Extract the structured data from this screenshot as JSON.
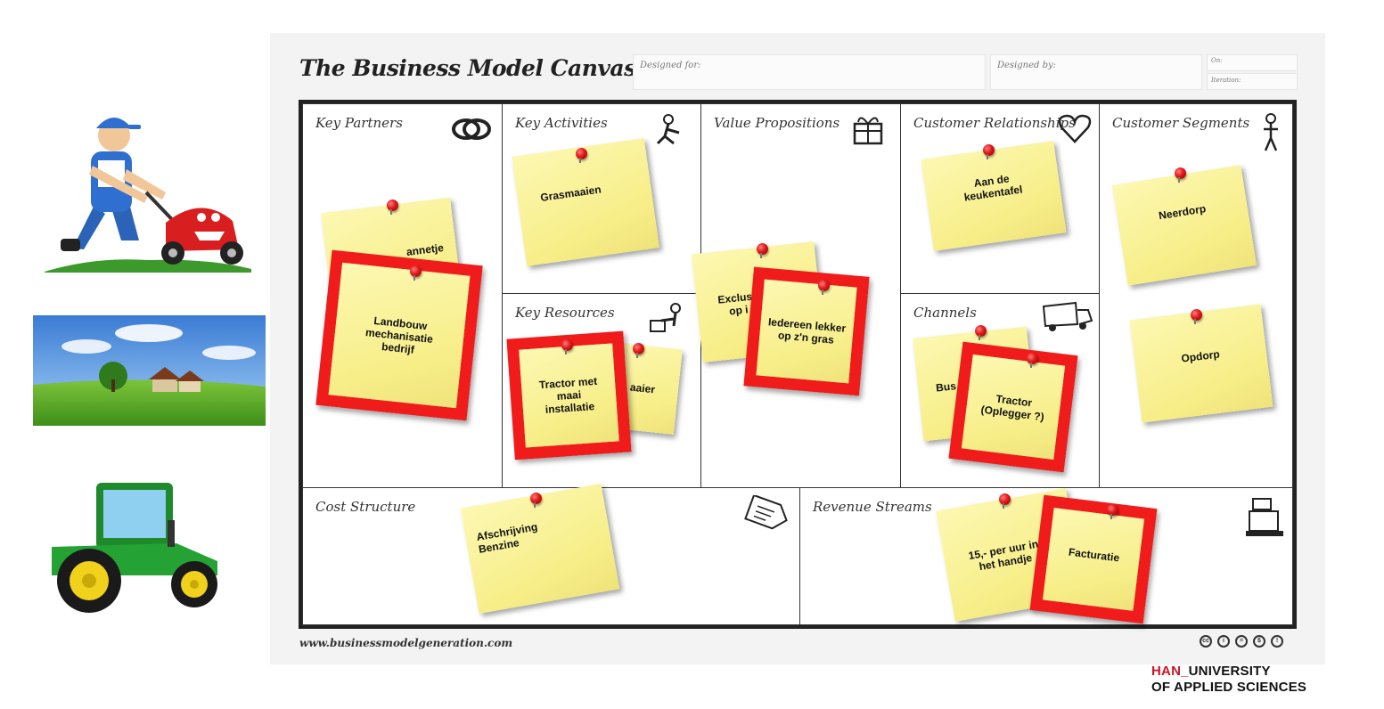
{
  "canvas": {
    "title": "The Business Model Canvas",
    "designed_for_label": "Designed for:",
    "designed_by_label": "Designed by:",
    "on_label": "On:",
    "iteration_label": "Iteration:",
    "footer_url": "www.businessmodelgeneration.com"
  },
  "sections": {
    "key_partners": "Key Partners",
    "key_activities": "Key Activities",
    "key_resources": "Key Resources",
    "value_propositions": "Value Propositions",
    "customer_relationships": "Customer Relationships",
    "channels": "Channels",
    "customer_segments": "Customer Segments",
    "cost_structure": "Cost Structure",
    "revenue_streams": "Revenue Streams"
  },
  "notes": {
    "kp_back": "annetje",
    "kp_front": "Landbouw mechanisatie bedrijf",
    "ka": "Grasmaaien",
    "kr_back": "aaier",
    "kr_front": "Tractor met maai installatie",
    "vp_back": "Exclusie op i",
    "vp_front": "Iedereen lekker op z'n gras",
    "cr": "Aan de keukentafel",
    "ch_back": "Bus m",
    "ch_front": "Tractor (Oplegger ?)",
    "cs_1": "Neerdorp",
    "cs_2": "Opdorp",
    "cost": "Afschrijving Benzine",
    "rev_1": "15,- per uur in het handje",
    "rev_2": "Facturatie"
  },
  "branding": {
    "han_prefix": "HAN_",
    "han_line1": "UNIVERSITY",
    "han_line2": "OF APPLIED SCIENCES"
  },
  "colors": {
    "sticky": "#f7ee88",
    "frame_red": "#f01b1b",
    "han_red": "#d1112a"
  },
  "icons": [
    "lawnmower-man-illustration",
    "landscape-house-photo",
    "tractor-illustration",
    "rings-icon",
    "worker-icon",
    "gift-icon",
    "heart-icon",
    "person-icon",
    "truck-icon",
    "price-tag-icon",
    "cash-register-icon",
    "creative-commons-icon"
  ]
}
